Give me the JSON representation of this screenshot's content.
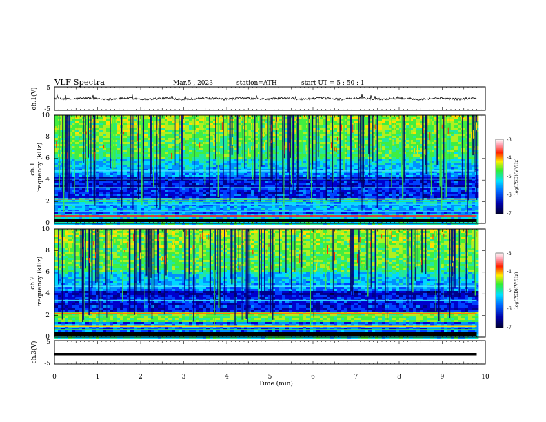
{
  "header": {
    "title": "VLF  Spectra",
    "date": "Mar.5  , 2023",
    "station": "station=ATH",
    "start": "start  UT  =   5  : 50 : 1"
  },
  "chart_data": [
    {
      "type": "line",
      "panel": "ch1-waveform",
      "ylabel": "ch.1(V)",
      "ylim": [
        -5,
        5
      ],
      "yticks": [
        "5",
        "-5"
      ],
      "x_unit": "min",
      "xlim": [
        0,
        10
      ],
      "series": [
        {
          "x": [
            0,
            9.8
          ],
          "values": [
            0,
            0
          ]
        }
      ]
    },
    {
      "type": "heatmap",
      "panel": "ch1-spectrogram",
      "ylabel": "Frequency  (kHz)",
      "channel_label": "ch.1",
      "ylim": [
        0,
        10
      ],
      "yticks": [
        "0",
        "2",
        "4",
        "6",
        "8",
        "10"
      ],
      "xlim": [
        0,
        10
      ],
      "data_end_min": 9.8,
      "colorbar": {
        "label": "log(PSD)(V²/Hz)",
        "range": [
          -7,
          -3
        ],
        "ticks": [
          "-3",
          "-4",
          "-5",
          "-6",
          "-7"
        ]
      }
    },
    {
      "type": "heatmap",
      "panel": "ch2-spectrogram",
      "ylabel": "Frequency  (kHz)",
      "channel_label": "ch.2",
      "ylim": [
        0,
        10
      ],
      "yticks": [
        "0",
        "2",
        "4",
        "6",
        "8",
        "10"
      ],
      "xlim": [
        0,
        10
      ],
      "data_end_min": 9.8,
      "colorbar": {
        "label": "log(PSD)(V²/Hz)",
        "range": [
          -7,
          -3
        ],
        "ticks": [
          "-3",
          "-4",
          "-5",
          "-6",
          "-7"
        ]
      }
    },
    {
      "type": "line",
      "panel": "ch3-waveform",
      "ylabel": "ch.3(V)",
      "ylim": [
        -5,
        5
      ],
      "yticks": [
        "5",
        "-5"
      ],
      "xlabel": "Time  (min)",
      "xlim": [
        0,
        10
      ],
      "xticks": [
        "0",
        "1",
        "2",
        "3",
        "4",
        "5",
        "6",
        "7",
        "8",
        "9",
        "10"
      ],
      "series": [
        {
          "x": [
            0,
            9.8
          ],
          "values": [
            -0.8,
            -0.8
          ]
        }
      ]
    }
  ]
}
